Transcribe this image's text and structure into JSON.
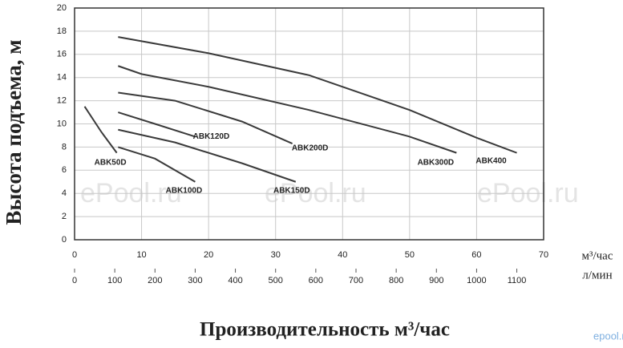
{
  "chart_data": {
    "type": "line",
    "ylabel": "Высота подъема, м",
    "xlabel": "Производительность м³/час",
    "xunit": "м³/час",
    "x2unit": "л/мин",
    "xlim": [
      0,
      70
    ],
    "xticks": [
      0,
      10,
      20,
      30,
      40,
      50,
      60,
      70
    ],
    "x2lim": [
      0,
      1166.67
    ],
    "x2ticks": [
      0,
      100,
      200,
      300,
      400,
      500,
      600,
      700,
      800,
      900,
      1000,
      1100
    ],
    "ylim": [
      0,
      20
    ],
    "yticks": [
      0,
      2,
      4,
      6,
      8,
      10,
      12,
      14,
      16,
      18,
      20
    ],
    "grid": true,
    "series": [
      {
        "name": "ABK50D",
        "color": "#3a3a3a",
        "x": [
          1.5,
          4,
          6.3
        ],
        "values": [
          11.5,
          9.3,
          7.5
        ]
      },
      {
        "name": "ABK100D",
        "color": "#3a3a3a",
        "x": [
          6.5,
          12,
          18
        ],
        "values": [
          8,
          7,
          5
        ]
      },
      {
        "name": "ABK120D",
        "color": "#3a3a3a",
        "x": [
          6.5,
          12,
          18
        ],
        "values": [
          11,
          10,
          8.9
        ]
      },
      {
        "name": "ABK150D",
        "color": "#3a3a3a",
        "x": [
          6.5,
          15,
          25,
          33
        ],
        "values": [
          9.5,
          8.4,
          6.6,
          5
        ]
      },
      {
        "name": "ABK200D",
        "color": "#3a3a3a",
        "x": [
          6.5,
          15,
          25,
          32.5
        ],
        "values": [
          12.7,
          12,
          10.2,
          8.3
        ]
      },
      {
        "name": "ABK300D",
        "color": "#3a3a3a",
        "x": [
          6.5,
          10,
          20,
          35,
          50,
          57
        ],
        "values": [
          15,
          14.3,
          13.2,
          11.2,
          8.9,
          7.5
        ]
      },
      {
        "name": "ABK400",
        "color": "#3a3a3a",
        "x": [
          6.5,
          20,
          35,
          50,
          60,
          66
        ],
        "values": [
          17.5,
          16.1,
          14.2,
          11.2,
          8.8,
          7.5
        ]
      }
    ],
    "watermarks": [
      "ePool.ru",
      "ePool.ru",
      "ePool.ru",
      "epool.ru"
    ]
  }
}
